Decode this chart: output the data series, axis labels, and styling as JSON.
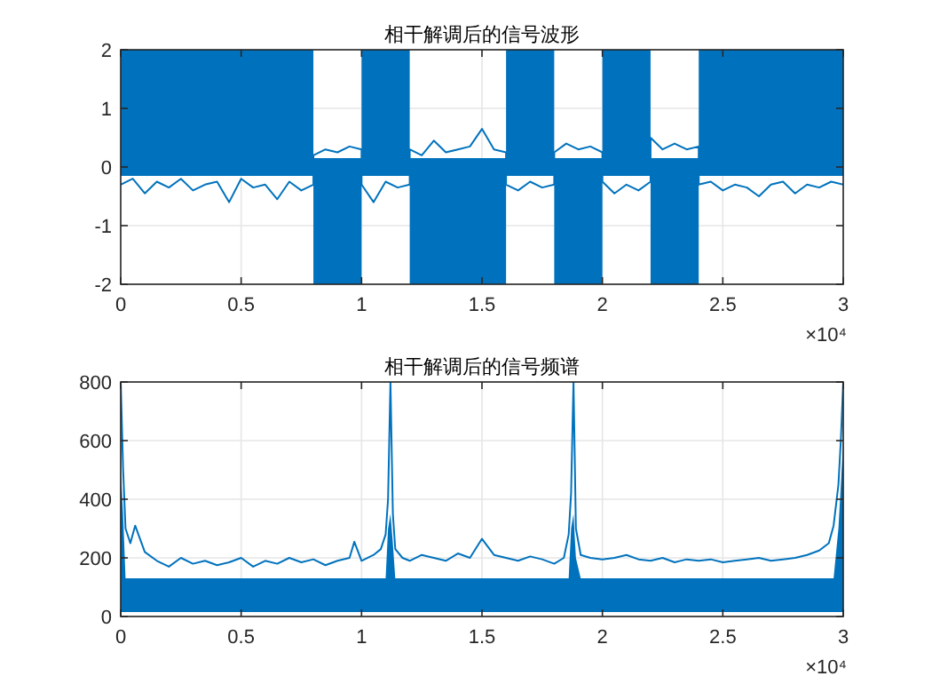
{
  "chart_data": [
    {
      "type": "line",
      "title": "相干解调后的信号波形",
      "xlim": [
        0,
        3
      ],
      "ylim": [
        -2,
        2
      ],
      "xticks": [
        0,
        0.5,
        1,
        1.5,
        2,
        2.5,
        3
      ],
      "yticks": [
        -2,
        -1,
        0,
        1,
        2
      ],
      "grid": true,
      "annotations": [
        "×10⁴"
      ],
      "series": [
        {
          "color": "#0072bd",
          "x": [
            0,
            0.05,
            0.1,
            0.15,
            0.2,
            0.25,
            0.3,
            0.35,
            0.4,
            0.45,
            0.5,
            0.55,
            0.6,
            0.65,
            0.7,
            0.75,
            0.8,
            0.8,
            0.85,
            0.9,
            0.95,
            1,
            1,
            1.05,
            1.1,
            1.15,
            1.2,
            1.2,
            1.25,
            1.3,
            1.35,
            1.4,
            1.45,
            1.5,
            1.55,
            1.6,
            1.6,
            1.65,
            1.7,
            1.75,
            1.8,
            1.8,
            1.85,
            1.9,
            1.95,
            2,
            2,
            2.05,
            2.1,
            2.15,
            2.2,
            2.2,
            2.25,
            2.3,
            2.35,
            2.4,
            2.4,
            2.45,
            2.5,
            2.55,
            2.6,
            2.65,
            2.7,
            2.75,
            2.8,
            2.85,
            2.9,
            2.95,
            3
          ],
          "values": [
            -0.3,
            -0.2,
            -0.45,
            -0.25,
            -0.35,
            -0.2,
            -0.4,
            -0.3,
            -0.25,
            -0.6,
            -0.2,
            -0.35,
            -0.3,
            -0.55,
            -0.25,
            -0.4,
            -0.3,
            0.2,
            0.3,
            0.25,
            0.35,
            0.3,
            -0.3,
            -0.6,
            -0.25,
            -0.35,
            -0.3,
            0.3,
            0.2,
            0.45,
            0.25,
            0.3,
            0.35,
            0.65,
            0.3,
            0.25,
            -0.3,
            -0.4,
            -0.25,
            -0.35,
            -0.3,
            0.25,
            0.4,
            0.3,
            0.35,
            0.25,
            -0.25,
            -0.45,
            -0.3,
            -0.4,
            -0.25,
            0.5,
            0.3,
            0.4,
            0.3,
            0.35,
            -0.3,
            -0.25,
            -0.4,
            -0.3,
            -0.35,
            -0.5,
            -0.3,
            -0.25,
            -0.45,
            -0.3,
            -0.35,
            -0.25,
            -0.3
          ],
          "lower": [
            -0.15,
            -0.15,
            -0.15,
            -0.15,
            -0.15,
            -0.15,
            -0.15,
            -0.15,
            -0.15,
            -0.15,
            -0.15,
            -0.15,
            -0.15,
            -0.15,
            -0.15,
            -0.15,
            -0.15,
            -2,
            -2,
            -2,
            -2,
            -2,
            -0.15,
            -0.15,
            -0.15,
            -0.15,
            -0.15,
            -2,
            -2,
            -2,
            -2,
            -2,
            -2,
            -2,
            -2,
            -2,
            -0.15,
            -0.15,
            -0.15,
            -0.15,
            -0.15,
            -2,
            -2,
            -2,
            -2,
            -2,
            -0.15,
            -0.15,
            -0.15,
            -0.15,
            -0.15,
            -2,
            -2,
            -2,
            -2,
            -2,
            -0.15,
            -0.15,
            -0.15,
            -0.15,
            -0.15,
            -0.15,
            -0.15,
            -0.15,
            -0.15,
            -0.15,
            -0.15,
            -0.15,
            -0.15
          ],
          "upper": [
            2,
            2,
            2,
            2,
            2,
            2,
            2,
            2,
            2,
            2,
            2,
            2,
            2,
            2,
            2,
            2,
            2,
            0.15,
            0.15,
            0.15,
            0.15,
            0.15,
            2,
            2,
            2,
            2,
            2,
            0.15,
            0.15,
            0.15,
            0.15,
            0.15,
            0.15,
            0.15,
            0.15,
            0.15,
            2,
            2,
            2,
            2,
            2,
            0.15,
            0.15,
            0.15,
            0.15,
            0.15,
            2,
            2,
            2,
            2,
            2,
            0.15,
            0.15,
            0.15,
            0.15,
            0.15,
            2,
            2,
            2,
            2,
            2,
            2,
            2,
            2,
            2,
            2,
            2,
            2,
            2
          ]
        }
      ]
    },
    {
      "type": "line",
      "title": "相干解调后的信号频谱",
      "xlim": [
        0,
        3
      ],
      "ylim": [
        0,
        800
      ],
      "xticks": [
        0,
        0.5,
        1,
        1.5,
        2,
        2.5,
        3
      ],
      "yticks": [
        0,
        200,
        400,
        600,
        800
      ],
      "grid": true,
      "annotations": [
        "×10⁴"
      ],
      "series": [
        {
          "color": "#0072bd",
          "x": [
            0,
            0.01,
            0.02,
            0.04,
            0.06,
            0.1,
            0.15,
            0.2,
            0.25,
            0.3,
            0.35,
            0.4,
            0.45,
            0.5,
            0.55,
            0.6,
            0.65,
            0.7,
            0.75,
            0.8,
            0.85,
            0.9,
            0.95,
            0.97,
            1,
            1.05,
            1.08,
            1.1,
            1.11,
            1.12,
            1.13,
            1.14,
            1.17,
            1.2,
            1.25,
            1.3,
            1.35,
            1.4,
            1.45,
            1.5,
            1.55,
            1.6,
            1.65,
            1.7,
            1.75,
            1.8,
            1.84,
            1.86,
            1.87,
            1.88,
            1.89,
            1.91,
            1.95,
            2,
            2.05,
            2.1,
            2.15,
            2.2,
            2.25,
            2.3,
            2.35,
            2.4,
            2.45,
            2.5,
            2.55,
            2.6,
            2.65,
            2.7,
            2.75,
            2.8,
            2.85,
            2.9,
            2.94,
            2.96,
            2.98,
            2.99,
            3
          ],
          "values": [
            800,
            500,
            300,
            250,
            310,
            220,
            190,
            170,
            200,
            180,
            190,
            175,
            185,
            200,
            170,
            190,
            180,
            200,
            185,
            195,
            175,
            190,
            200,
            255,
            190,
            210,
            230,
            280,
            400,
            800,
            350,
            230,
            200,
            190,
            210,
            200,
            190,
            215,
            200,
            265,
            210,
            200,
            190,
            205,
            195,
            180,
            200,
            280,
            420,
            800,
            300,
            210,
            200,
            195,
            200,
            210,
            195,
            190,
            200,
            185,
            195,
            190,
            195,
            185,
            190,
            195,
            200,
            190,
            195,
            200,
            210,
            225,
            250,
            310,
            450,
            600,
            800
          ],
          "lower": [
            15,
            15,
            15,
            15,
            15,
            15,
            15,
            15,
            15,
            15,
            15,
            15,
            15,
            15,
            15,
            15,
            15,
            15,
            15,
            15,
            15,
            15,
            15,
            15,
            15,
            15,
            15,
            15,
            15,
            15,
            15,
            15,
            15,
            15,
            15,
            15,
            15,
            15,
            15,
            15,
            15,
            15,
            15,
            15,
            15,
            15,
            15,
            15,
            15,
            15,
            15,
            15,
            15,
            15,
            15,
            15,
            15,
            15,
            15,
            15,
            15,
            15,
            15,
            15,
            15,
            15,
            15,
            15,
            15,
            15,
            15,
            15,
            15,
            15,
            15,
            15,
            15
          ],
          "upper": [
            500,
            350,
            130,
            130,
            130,
            130,
            130,
            130,
            130,
            130,
            130,
            130,
            130,
            130,
            130,
            130,
            130,
            130,
            130,
            130,
            130,
            130,
            130,
            130,
            130,
            130,
            130,
            130,
            300,
            350,
            250,
            130,
            130,
            130,
            130,
            130,
            130,
            130,
            130,
            130,
            130,
            130,
            130,
            130,
            130,
            130,
            130,
            130,
            300,
            350,
            200,
            130,
            130,
            130,
            130,
            130,
            130,
            130,
            130,
            130,
            130,
            130,
            130,
            130,
            130,
            130,
            130,
            130,
            130,
            130,
            130,
            130,
            130,
            130,
            300,
            450,
            600
          ]
        }
      ]
    }
  ]
}
